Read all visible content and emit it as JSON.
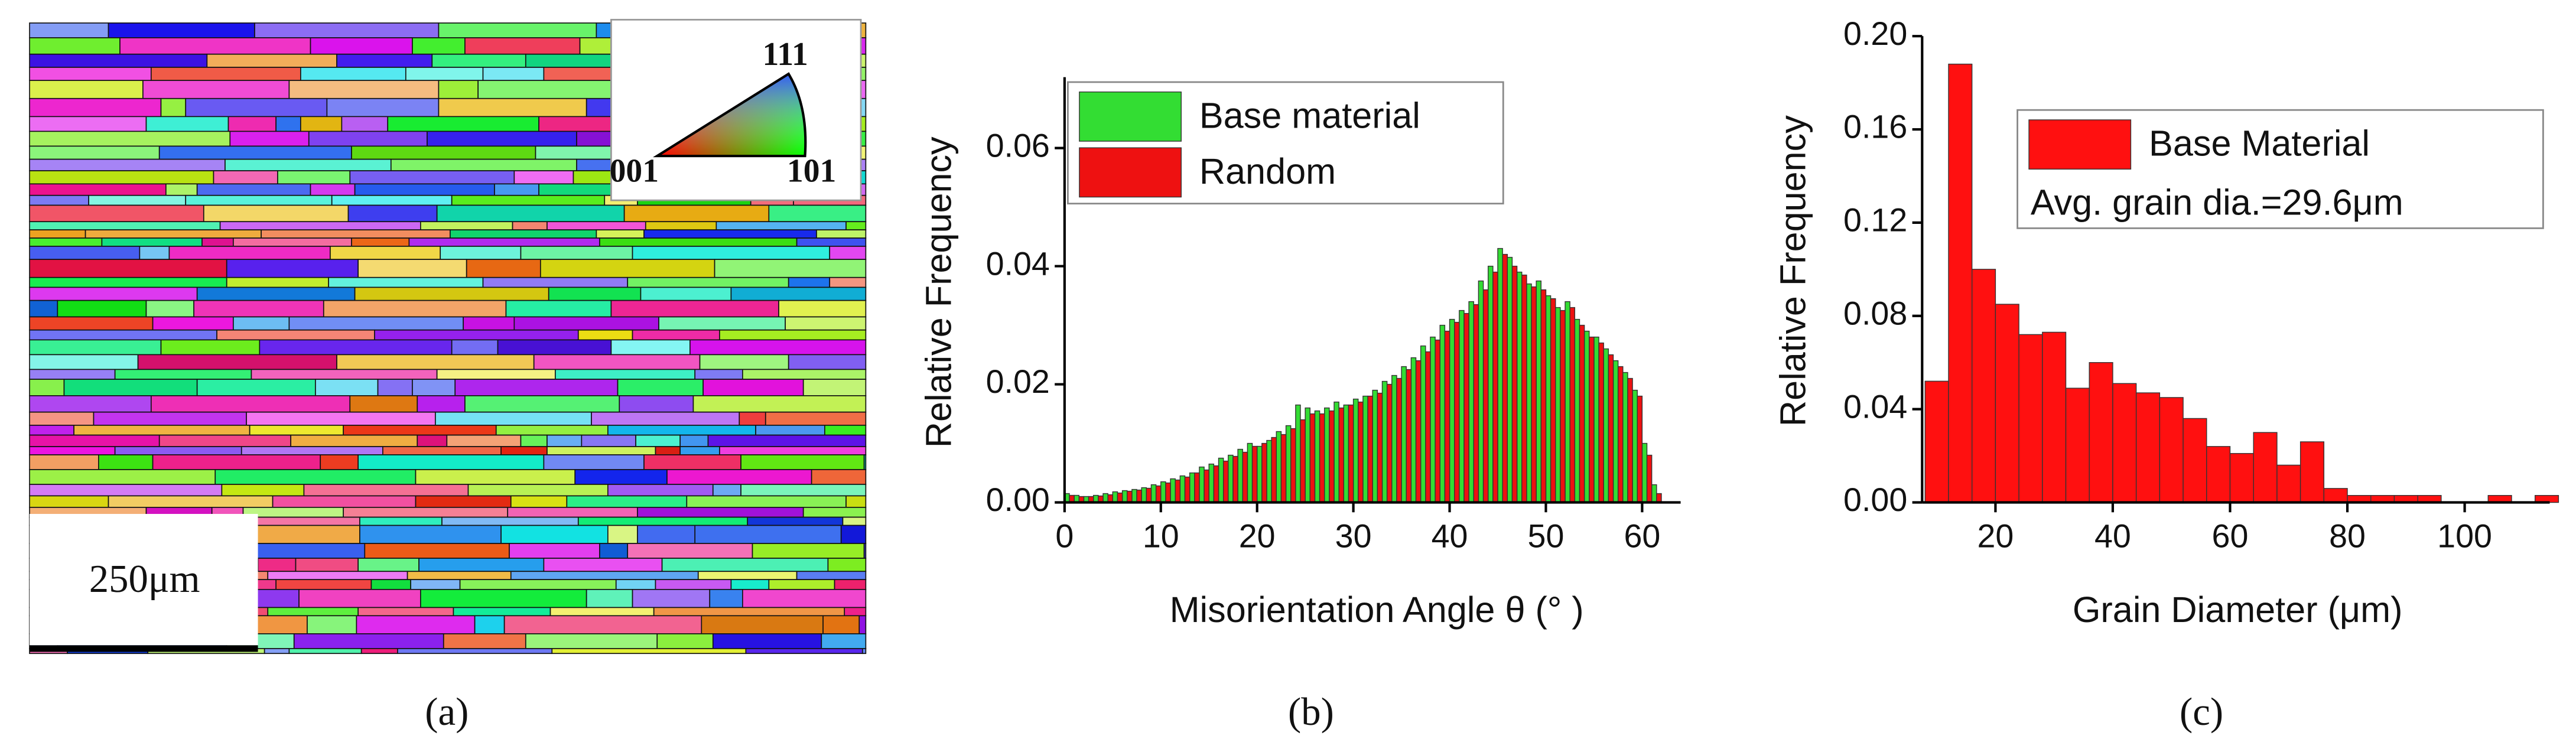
{
  "figure": {
    "panel_a": {
      "ipf_labels": [
        "111",
        "001",
        "101"
      ],
      "scale_bar": "250μm"
    },
    "captions": [
      "(a)",
      "(b)",
      "(c)"
    ]
  },
  "chart_data": [
    {
      "type": "histogram",
      "xlabel": "Misorientation Angle θ (° )",
      "ylabel": "Relative Frequency",
      "bins": [
        0,
        1,
        2,
        3,
        4,
        5,
        6,
        7,
        8,
        9,
        10,
        11,
        12,
        13,
        14,
        15,
        16,
        17,
        18,
        19,
        20,
        21,
        22,
        23,
        24,
        25,
        26,
        27,
        28,
        29,
        30,
        31,
        32,
        33,
        34,
        35,
        36,
        37,
        38,
        39,
        40,
        41,
        42,
        43,
        44,
        45,
        46,
        47,
        48,
        49,
        50,
        51,
        52,
        53,
        54,
        55,
        56,
        57,
        58,
        59,
        60,
        61,
        62
      ],
      "series": [
        {
          "name": "Base material",
          "color": "#33dd33",
          "values": [
            0.0015,
            0.0012,
            0.001,
            0.0012,
            0.0015,
            0.0018,
            0.002,
            0.0022,
            0.0025,
            0.003,
            0.0035,
            0.004,
            0.0045,
            0.005,
            0.006,
            0.0065,
            0.0075,
            0.008,
            0.009,
            0.01,
            0.0095,
            0.0105,
            0.012,
            0.013,
            0.0165,
            0.016,
            0.0155,
            0.016,
            0.017,
            0.0165,
            0.0175,
            0.018,
            0.019,
            0.0205,
            0.0215,
            0.023,
            0.0245,
            0.0265,
            0.028,
            0.03,
            0.031,
            0.0325,
            0.034,
            0.0375,
            0.04,
            0.043,
            0.0415,
            0.039,
            0.037,
            0.0375,
            0.035,
            0.033,
            0.034,
            0.031,
            0.029,
            0.028,
            0.026,
            0.024,
            0.022,
            0.019,
            0.01,
            0.003
          ]
        },
        {
          "name": "Random",
          "color": "#ee1111",
          "values": [
            0.0012,
            0.001,
            0.001,
            0.0011,
            0.0013,
            0.0016,
            0.0019,
            0.0021,
            0.0024,
            0.0028,
            0.0033,
            0.0038,
            0.0043,
            0.005,
            0.0055,
            0.0062,
            0.007,
            0.0078,
            0.0085,
            0.0095,
            0.01,
            0.011,
            0.0115,
            0.0125,
            0.014,
            0.015,
            0.015,
            0.0155,
            0.016,
            0.0165,
            0.017,
            0.018,
            0.0185,
            0.02,
            0.021,
            0.0225,
            0.024,
            0.0255,
            0.0275,
            0.029,
            0.0305,
            0.032,
            0.0335,
            0.036,
            0.039,
            0.042,
            0.04,
            0.0385,
            0.0365,
            0.036,
            0.0345,
            0.0325,
            0.033,
            0.03,
            0.028,
            0.027,
            0.025,
            0.023,
            0.021,
            0.018,
            0.008,
            0.0015
          ]
        }
      ],
      "xlim": [
        0,
        64
      ],
      "xticks": [
        0,
        10,
        20,
        30,
        40,
        50,
        60
      ],
      "ylim": [
        0,
        0.072
      ],
      "yticks": [
        {
          "value": 0,
          "label": "0.00"
        },
        {
          "value": 0.02,
          "label": "0.02"
        },
        {
          "value": 0.04,
          "label": "0.04"
        },
        {
          "value": 0.06,
          "label": "0.06"
        }
      ],
      "legend": "upper left"
    },
    {
      "type": "histogram",
      "xlabel": "Grain Diameter (μm)",
      "ylabel": "Relative Frequency",
      "annotation": "Avg. grain dia.=29.6μm",
      "bins": [
        8,
        12,
        16,
        20,
        24,
        28,
        32,
        36,
        40,
        44,
        48,
        52,
        56,
        60,
        64,
        68,
        72,
        76,
        80,
        84,
        88,
        92,
        96,
        100,
        104,
        108,
        112,
        116
      ],
      "series": [
        {
          "name": "Base Material",
          "color": "#ff1010",
          "values": [
            0.052,
            0.188,
            0.1,
            0.085,
            0.072,
            0.073,
            0.049,
            0.06,
            0.051,
            0.047,
            0.045,
            0.036,
            0.024,
            0.021,
            0.03,
            0.016,
            0.026,
            0.006,
            0.003,
            0.003,
            0.003,
            0.003,
            0,
            0,
            0.003,
            0,
            0.003
          ]
        }
      ],
      "xlim": [
        7.5,
        114.5
      ],
      "xticks": [
        20,
        40,
        60,
        80,
        100
      ],
      "ylim": [
        0,
        0.2
      ],
      "yticks": [
        {
          "value": 0,
          "label": "0.00"
        },
        {
          "value": 0.04,
          "label": "0.04"
        },
        {
          "value": 0.08,
          "label": "0.08"
        },
        {
          "value": 0.12,
          "label": "0.12"
        },
        {
          "value": 0.16,
          "label": "0.16"
        },
        {
          "value": 0.2,
          "label": "0.20"
        }
      ],
      "legend": "upper right"
    }
  ]
}
